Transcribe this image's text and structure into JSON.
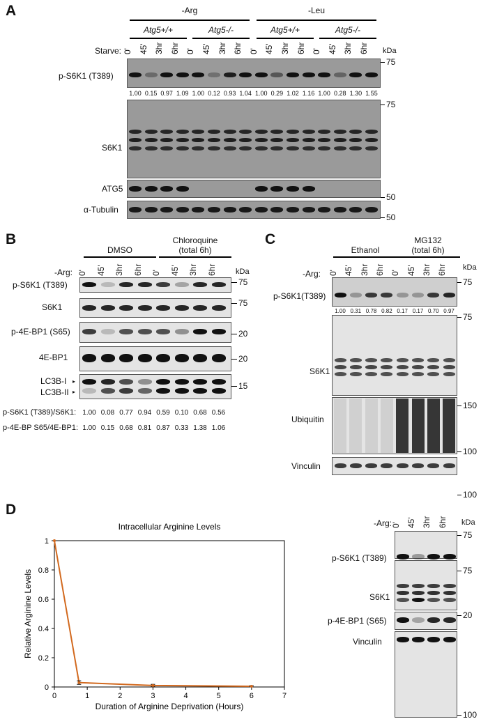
{
  "panels": {
    "A": "A",
    "B": "B",
    "C": "C",
    "D": "D"
  },
  "A": {
    "groups": [
      "-Arg",
      "-Leu"
    ],
    "genotypes": [
      "Atg5+/+",
      "Atg5-/-",
      "Atg5+/+",
      "Atg5-/-"
    ],
    "starve_label": "Starve:",
    "timepoints": [
      "0'",
      "45'",
      "3hr",
      "6hr"
    ],
    "kda": "kDa",
    "rows": [
      "p-S6K1 (T389)",
      "S6K1",
      "ATG5",
      "α-Tubulin"
    ],
    "quant": [
      "1.00",
      "0.15",
      "0.97",
      "1.09",
      "1.00",
      "0.12",
      "0.93",
      "1.04",
      "1.00",
      "0.29",
      "1.02",
      "1.16",
      "1.00",
      "0.28",
      "1.30",
      "1.55"
    ],
    "markers": [
      "75",
      "75",
      "50",
      "50"
    ]
  },
  "B": {
    "groups": [
      "DMSO",
      "Chloroquine",
      "(total 6h)"
    ],
    "arg_label": "-Arg:",
    "timepoints": [
      "0'",
      "45'",
      "3hr",
      "6hr"
    ],
    "kda": "kDa",
    "rows": [
      "p-S6K1 (T389)",
      "S6K1",
      "p-4E-BP1 (S65)",
      "4E-BP1",
      "LC3B-I",
      "LC3B-II"
    ],
    "markers": [
      "75",
      "75",
      "20",
      "20",
      "15"
    ],
    "ratio_labels": [
      "p-S6K1 (T389)/S6K1:",
      "p-4E-BP S65/4E-BP1:"
    ],
    "ratio1": [
      "1.00",
      "0.08",
      "0.77",
      "0.94",
      "0.59",
      "0.10",
      "0.68",
      "0.56"
    ],
    "ratio2": [
      "1.00",
      "0.15",
      "0.68",
      "0.81",
      "0.87",
      "0.33",
      "1.38",
      "1.06"
    ]
  },
  "C": {
    "groups": [
      "Ethanol",
      "MG132",
      "(total 6h)"
    ],
    "arg_label": "-Arg:",
    "timepoints": [
      "0'",
      "45'",
      "3hr",
      "6hr"
    ],
    "kda": "kDa",
    "rows": [
      "p-S6K1(T389)",
      "S6K1",
      "Ubiquitin",
      "Vinculin"
    ],
    "quant": [
      "1.00",
      "0.31",
      "0.78",
      "0.82",
      "0.17",
      "0.17",
      "0.70",
      "0.97"
    ],
    "markers": [
      "75",
      "75",
      "150",
      "100",
      "100"
    ]
  },
  "D": {
    "arg_label": "-Arg:",
    "timepoints": [
      "0'",
      "45'",
      "3hr",
      "6hr"
    ],
    "kda": "kDa",
    "rows": [
      "p-S6K1 (T389)",
      "S6K1",
      "p-4E-BP1 (S65)",
      "Vinculin"
    ],
    "markers": [
      "75",
      "75",
      "20",
      "100"
    ]
  },
  "chart_data": {
    "type": "line",
    "title": "Intracellular Arginine Levels",
    "xlabel": "Duration of Arginine Deprivation (Hours)",
    "ylabel": "Relative Arginine Levels",
    "x": [
      0,
      0.75,
      3,
      6
    ],
    "series": [
      {
        "values": [
          1.0,
          0.03,
          0.01,
          0.005
        ],
        "errors": [
          0,
          0.012,
          0.008,
          0.004
        ]
      }
    ],
    "xlim": [
      0,
      7
    ],
    "ylim": [
      0,
      1
    ],
    "xticks": [
      "0",
      "1",
      "2",
      "3",
      "4",
      "5",
      "6",
      "7"
    ],
    "yticks": [
      "0",
      "0.2",
      "0.4",
      "0.6",
      "0.8",
      "1"
    ],
    "line_color": "#d2691e",
    "grid": false
  }
}
